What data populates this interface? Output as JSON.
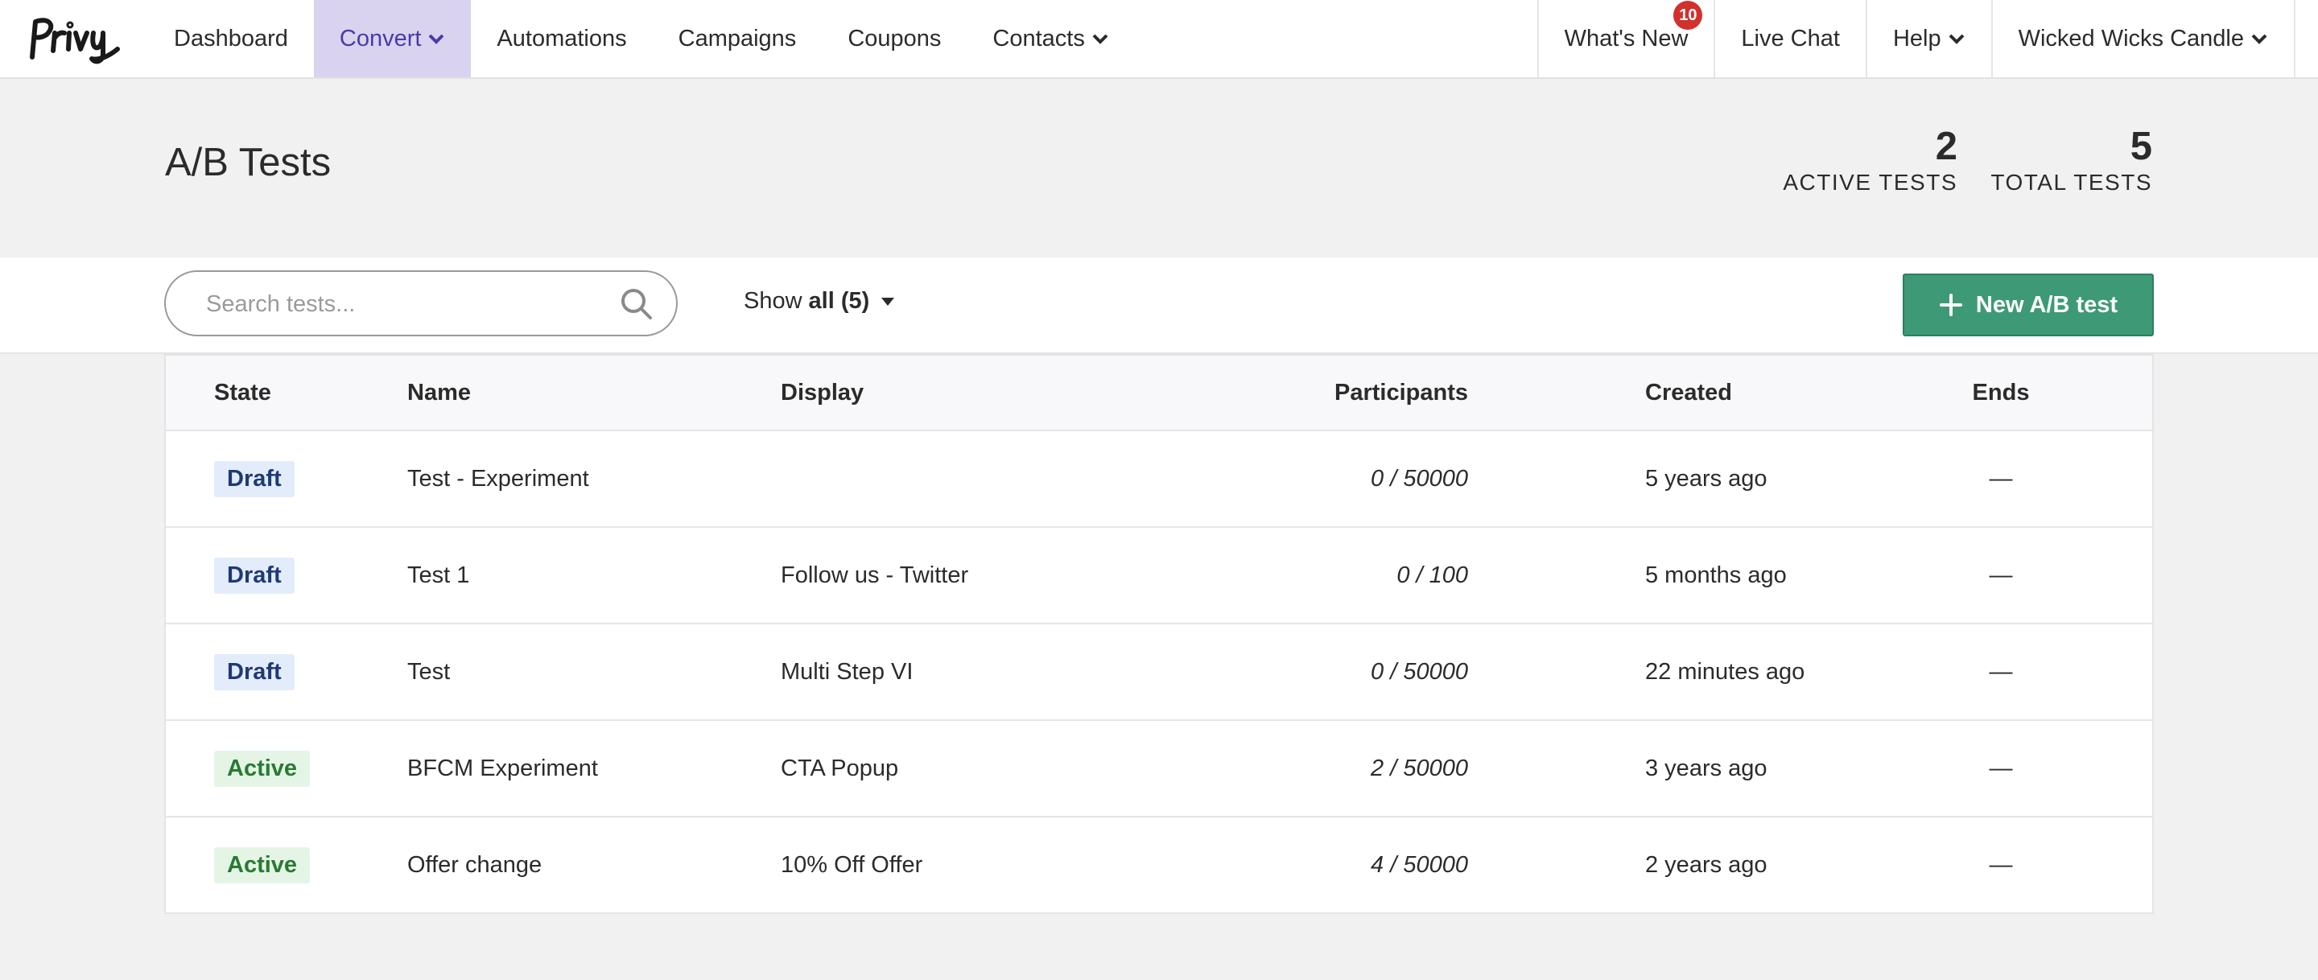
{
  "nav": {
    "brand": "Privy",
    "items": [
      {
        "label": "Dashboard",
        "active": false,
        "dropdown": false
      },
      {
        "label": "Convert",
        "active": true,
        "dropdown": true
      },
      {
        "label": "Automations",
        "active": false,
        "dropdown": false
      },
      {
        "label": "Campaigns",
        "active": false,
        "dropdown": false
      },
      {
        "label": "Coupons",
        "active": false,
        "dropdown": false
      },
      {
        "label": "Contacts",
        "active": false,
        "dropdown": true
      }
    ],
    "right": {
      "whats_new": "What's New",
      "whats_new_badge": "10",
      "live_chat": "Live Chat",
      "help": "Help",
      "account": "Wicked Wicks Candle"
    }
  },
  "header": {
    "title": "A/B Tests",
    "active_count": "2",
    "active_label": "ACTIVE TESTS",
    "total_count": "5",
    "total_label": "TOTAL TESTS"
  },
  "toolbar": {
    "search_placeholder": "Search tests...",
    "filter_prefix": "Show",
    "filter_value": "all (5)",
    "new_button": "New A/B test"
  },
  "table": {
    "columns": [
      "State",
      "Name",
      "Display",
      "Participants",
      "Created",
      "Ends"
    ],
    "rows": [
      {
        "state": "Draft",
        "state_type": "draft",
        "name": "Test - Experiment",
        "display": "",
        "participants": "0 / 50000",
        "created": "5 years ago",
        "ends": "—"
      },
      {
        "state": "Draft",
        "state_type": "draft",
        "name": "Test 1",
        "display": "Follow us - Twitter",
        "participants": "0 / 100",
        "created": "5 months ago",
        "ends": "—"
      },
      {
        "state": "Draft",
        "state_type": "draft",
        "name": "Test",
        "display": "Multi Step VI",
        "participants": "0 / 50000",
        "created": "22 minutes ago",
        "ends": "—"
      },
      {
        "state": "Active",
        "state_type": "active",
        "name": "BFCM Experiment",
        "display": "CTA Popup",
        "participants": "2 / 50000",
        "created": "3 years ago",
        "ends": "—"
      },
      {
        "state": "Active",
        "state_type": "active",
        "name": "Offer change",
        "display": "10% Off Offer",
        "participants": "4 / 50000",
        "created": "2 years ago",
        "ends": "—"
      }
    ]
  },
  "colors": {
    "accent_green": "#3e9a76",
    "nav_active_bg": "#d9d3f0",
    "badge_red": "#d2302c",
    "draft_bg": "#e3ecfa",
    "active_bg": "#e4f5e6"
  }
}
